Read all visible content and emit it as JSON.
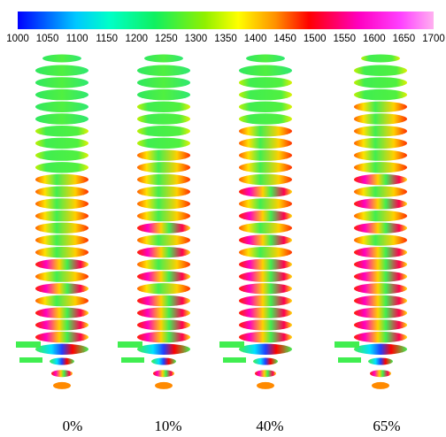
{
  "colorbar": {
    "ticks": [
      "1000",
      "1050",
      "1100",
      "1150",
      "1200",
      "1250",
      "1300",
      "1350",
      "1400",
      "1450",
      "1500",
      "1550",
      "1600",
      "1650",
      "1700"
    ]
  },
  "panels": [
    {
      "label": "0%"
    },
    {
      "label": "10%"
    },
    {
      "label": "40%"
    },
    {
      "label": "65%"
    }
  ]
}
